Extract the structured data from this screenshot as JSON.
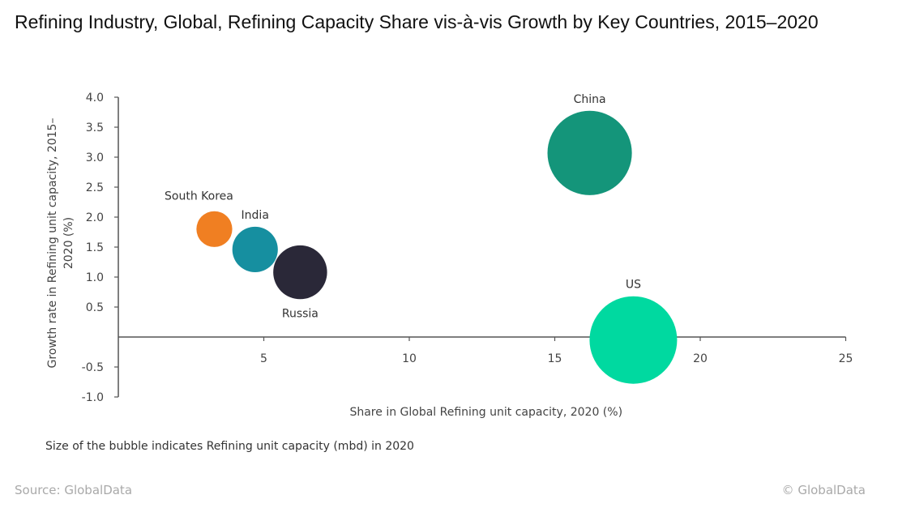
{
  "title": "Refining Industry, Global, Refining Capacity Share vis-à-vis Growth by Key Countries, 2015–2020",
  "note": "Size of the bubble indicates Refining unit capacity (mbd) in 2020",
  "source": "Source: GlobalData",
  "copyright": "© GlobalData",
  "chart_data": {
    "type": "scatter",
    "subtype": "bubble",
    "xlabel": "Share in Global Refining unit capacity, 2020 (%)",
    "ylabel": "Growth rate in Refining unit capacity, 2015–2020 (%)",
    "xlim": [
      0,
      25
    ],
    "ylim": [
      -1.0,
      4.0
    ],
    "x_ticks": [
      "5",
      "10",
      "15",
      "20",
      "25"
    ],
    "y_ticks": [
      "4.0",
      "3.5",
      "3.0",
      "2.5",
      "2.0",
      "1.5",
      "1.0",
      "0.5",
      "-0.5",
      "-1.0"
    ],
    "grid": false,
    "size_unit": "mbd",
    "points": [
      {
        "name": "South Korea",
        "x": 3.3,
        "y": 1.8,
        "size": 3.1,
        "color": "#f07f22",
        "label_pos": "above-left"
      },
      {
        "name": "India",
        "x": 4.7,
        "y": 1.46,
        "size": 5.0,
        "color": "#168fa0",
        "label_pos": "above"
      },
      {
        "name": "Russia",
        "x": 6.25,
        "y": 1.08,
        "size": 7.0,
        "color": "#2a2838",
        "label_pos": "below"
      },
      {
        "name": "China",
        "x": 16.2,
        "y": 3.07,
        "size": 17.2,
        "color": "#14957a",
        "label_pos": "above"
      },
      {
        "name": "US",
        "x": 17.7,
        "y": -0.05,
        "size": 18.5,
        "color": "#00d9a0",
        "label_pos": "above"
      }
    ]
  }
}
